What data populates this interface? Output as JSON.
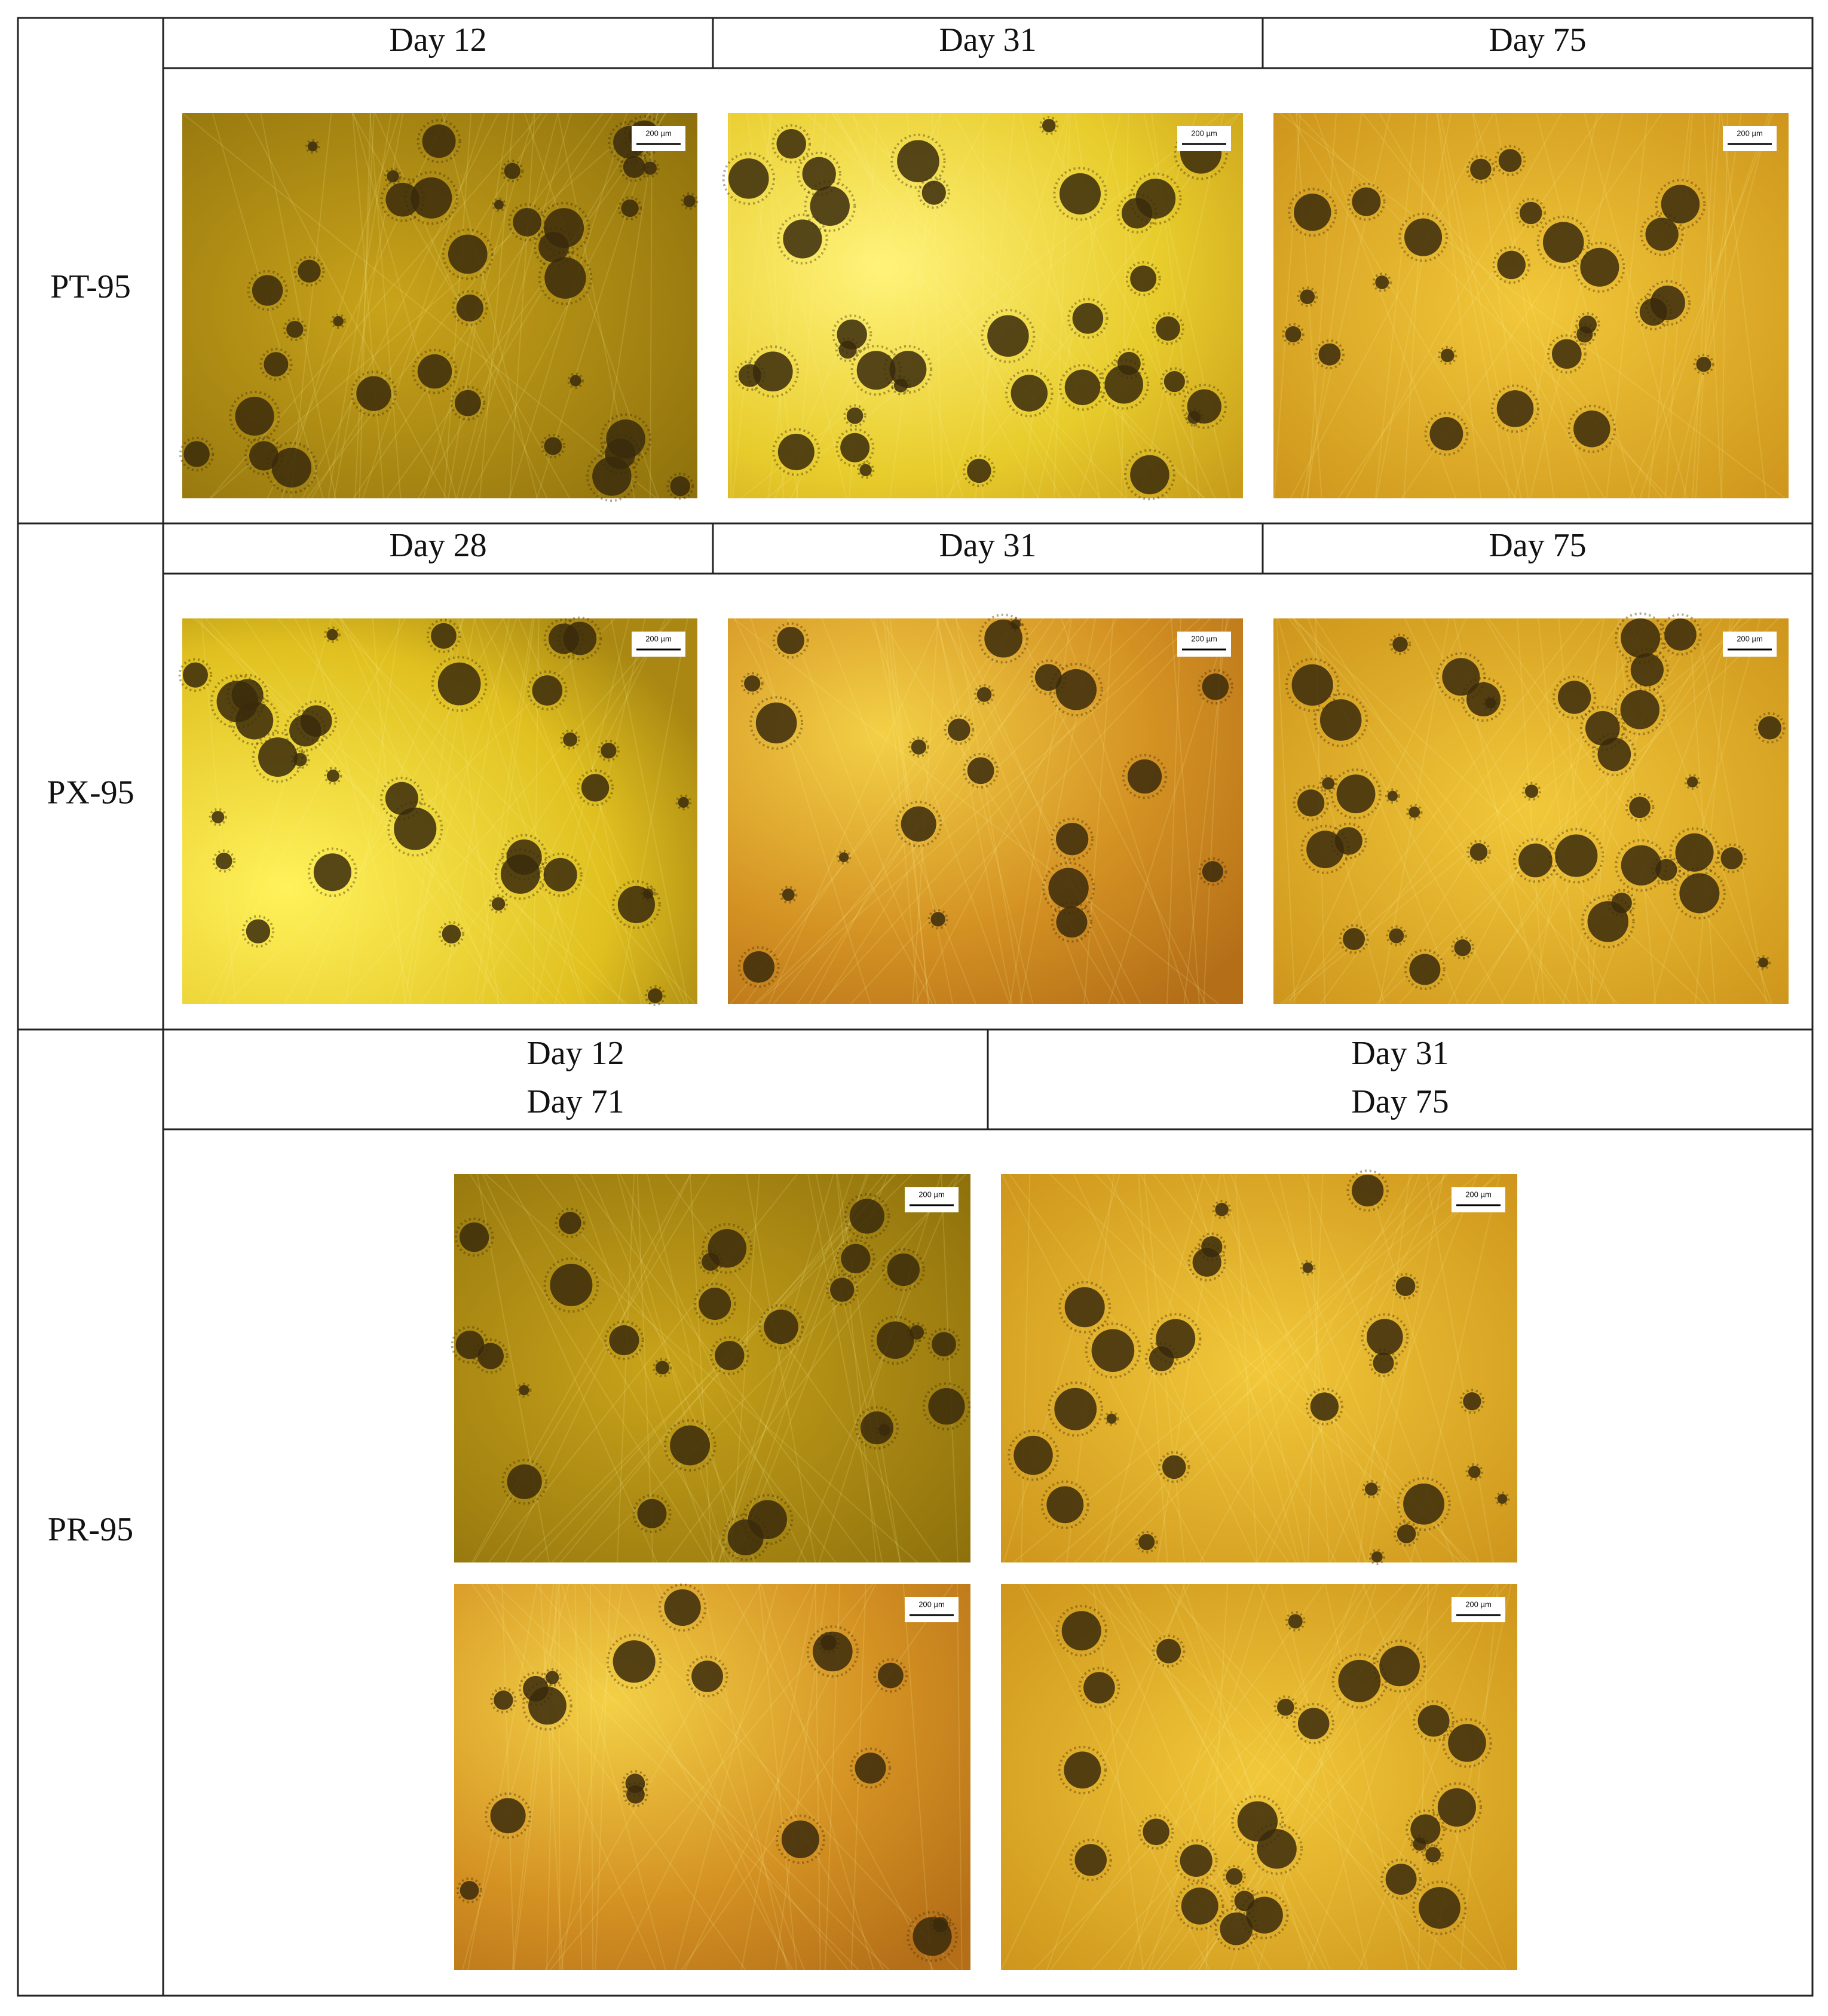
{
  "rows": [
    {
      "label": "PT-95",
      "headers": [
        [
          "Day 12"
        ],
        [
          "Day 31"
        ],
        [
          "Day 75"
        ]
      ]
    },
    {
      "label": "PX-95",
      "headers": [
        [
          "Day 28"
        ],
        [
          "Day 31"
        ],
        [
          "Day 75"
        ]
      ]
    },
    {
      "label": "PR-95",
      "headers": [
        [
          "Day 12",
          "Day 71"
        ],
        [
          "Day 31",
          "Day 75"
        ]
      ]
    }
  ],
  "scale_bar_label": "200 µm"
}
